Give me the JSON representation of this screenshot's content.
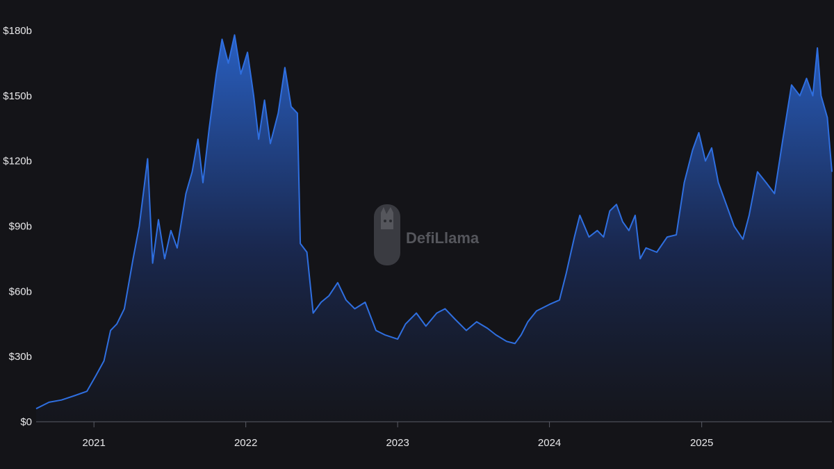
{
  "watermark": {
    "text": "DefiLlama",
    "icon": "llama-logo-icon"
  },
  "colors": {
    "background": "#141418",
    "line": "#2f6fe0",
    "fill_top": "#2a63c9",
    "fill_bottom": "#15171f",
    "axis": "#5a5c66",
    "text": "#e8e8ea"
  },
  "chart_data": {
    "type": "area",
    "title": "",
    "xlabel": "",
    "ylabel": "",
    "grid": false,
    "legend": "none",
    "ylim": [
      0,
      180
    ],
    "xlim": [
      "2020-08-15",
      "2025-11-10"
    ],
    "yticks": [
      {
        "value": 0,
        "label": "$0"
      },
      {
        "value": 30,
        "label": "$30b"
      },
      {
        "value": 60,
        "label": "$60b"
      },
      {
        "value": 90,
        "label": "$90b"
      },
      {
        "value": 120,
        "label": "$120b"
      },
      {
        "value": 150,
        "label": "$150b"
      },
      {
        "value": 180,
        "label": "$180b"
      }
    ],
    "xticks": [
      {
        "date": "2021-01-01",
        "label": "2021"
      },
      {
        "date": "2022-01-01",
        "label": "2022"
      },
      {
        "date": "2023-01-01",
        "label": "2023"
      },
      {
        "date": "2024-01-01",
        "label": "2024"
      },
      {
        "date": "2025-01-01",
        "label": "2025"
      }
    ],
    "series": [
      {
        "unit": "$b",
        "points": [
          [
            "2020-08-15",
            6
          ],
          [
            "2020-09-15",
            9
          ],
          [
            "2020-10-15",
            10
          ],
          [
            "2020-11-15",
            12
          ],
          [
            "2020-12-15",
            14
          ],
          [
            "2021-01-05",
            21
          ],
          [
            "2021-01-25",
            28
          ],
          [
            "2021-02-10",
            42
          ],
          [
            "2021-02-25",
            45
          ],
          [
            "2021-03-15",
            52
          ],
          [
            "2021-04-05",
            75
          ],
          [
            "2021-04-20",
            90
          ],
          [
            "2021-05-10",
            121
          ],
          [
            "2021-05-22",
            73
          ],
          [
            "2021-06-05",
            93
          ],
          [
            "2021-06-20",
            75
          ],
          [
            "2021-07-05",
            88
          ],
          [
            "2021-07-20",
            80
          ],
          [
            "2021-08-10",
            105
          ],
          [
            "2021-08-25",
            115
          ],
          [
            "2021-09-08",
            130
          ],
          [
            "2021-09-20",
            110
          ],
          [
            "2021-10-05",
            135
          ],
          [
            "2021-10-22",
            160
          ],
          [
            "2021-11-05",
            176
          ],
          [
            "2021-11-20",
            165
          ],
          [
            "2021-12-05",
            178
          ],
          [
            "2021-12-20",
            160
          ],
          [
            "2022-01-05",
            170
          ],
          [
            "2022-01-20",
            150
          ],
          [
            "2022-02-01",
            130
          ],
          [
            "2022-02-15",
            148
          ],
          [
            "2022-03-01",
            128
          ],
          [
            "2022-03-20",
            142
          ],
          [
            "2022-04-05",
            163
          ],
          [
            "2022-04-20",
            145
          ],
          [
            "2022-05-05",
            142
          ],
          [
            "2022-05-12",
            82
          ],
          [
            "2022-05-28",
            78
          ],
          [
            "2022-06-12",
            50
          ],
          [
            "2022-07-01",
            55
          ],
          [
            "2022-07-20",
            58
          ],
          [
            "2022-08-10",
            64
          ],
          [
            "2022-08-30",
            56
          ],
          [
            "2022-09-20",
            52
          ],
          [
            "2022-10-15",
            55
          ],
          [
            "2022-11-10",
            42
          ],
          [
            "2022-12-01",
            40
          ],
          [
            "2023-01-01",
            38
          ],
          [
            "2023-01-20",
            45
          ],
          [
            "2023-02-15",
            50
          ],
          [
            "2023-03-10",
            44
          ],
          [
            "2023-04-05",
            50
          ],
          [
            "2023-04-25",
            52
          ],
          [
            "2023-05-20",
            47
          ],
          [
            "2023-06-15",
            42
          ],
          [
            "2023-07-10",
            46
          ],
          [
            "2023-08-05",
            43
          ],
          [
            "2023-08-25",
            40
          ],
          [
            "2023-09-20",
            37
          ],
          [
            "2023-10-10",
            36
          ],
          [
            "2023-10-25",
            40
          ],
          [
            "2023-11-10",
            46
          ],
          [
            "2023-12-01",
            51
          ],
          [
            "2024-01-01",
            54
          ],
          [
            "2024-01-25",
            56
          ],
          [
            "2024-02-10",
            68
          ],
          [
            "2024-03-01",
            85
          ],
          [
            "2024-03-14",
            95
          ],
          [
            "2024-04-05",
            85
          ],
          [
            "2024-04-25",
            88
          ],
          [
            "2024-05-10",
            85
          ],
          [
            "2024-05-25",
            97
          ],
          [
            "2024-06-10",
            100
          ],
          [
            "2024-06-25",
            92
          ],
          [
            "2024-07-10",
            88
          ],
          [
            "2024-07-25",
            95
          ],
          [
            "2024-08-06",
            75
          ],
          [
            "2024-08-20",
            80
          ],
          [
            "2024-09-15",
            78
          ],
          [
            "2024-10-10",
            85
          ],
          [
            "2024-11-01",
            86
          ],
          [
            "2024-11-20",
            110
          ],
          [
            "2024-12-10",
            125
          ],
          [
            "2024-12-25",
            133
          ],
          [
            "2025-01-10",
            120
          ],
          [
            "2025-01-25",
            126
          ],
          [
            "2025-02-10",
            110
          ],
          [
            "2025-03-01",
            100
          ],
          [
            "2025-03-20",
            90
          ],
          [
            "2025-04-10",
            84
          ],
          [
            "2025-04-25",
            95
          ],
          [
            "2025-05-15",
            115
          ],
          [
            "2025-06-05",
            110
          ],
          [
            "2025-06-25",
            105
          ],
          [
            "2025-07-15",
            130
          ],
          [
            "2025-08-05",
            155
          ],
          [
            "2025-08-25",
            150
          ],
          [
            "2025-09-10",
            158
          ],
          [
            "2025-09-25",
            150
          ],
          [
            "2025-10-06",
            172
          ],
          [
            "2025-10-15",
            150
          ],
          [
            "2025-10-30",
            140
          ],
          [
            "2025-11-10",
            115
          ]
        ]
      }
    ]
  }
}
